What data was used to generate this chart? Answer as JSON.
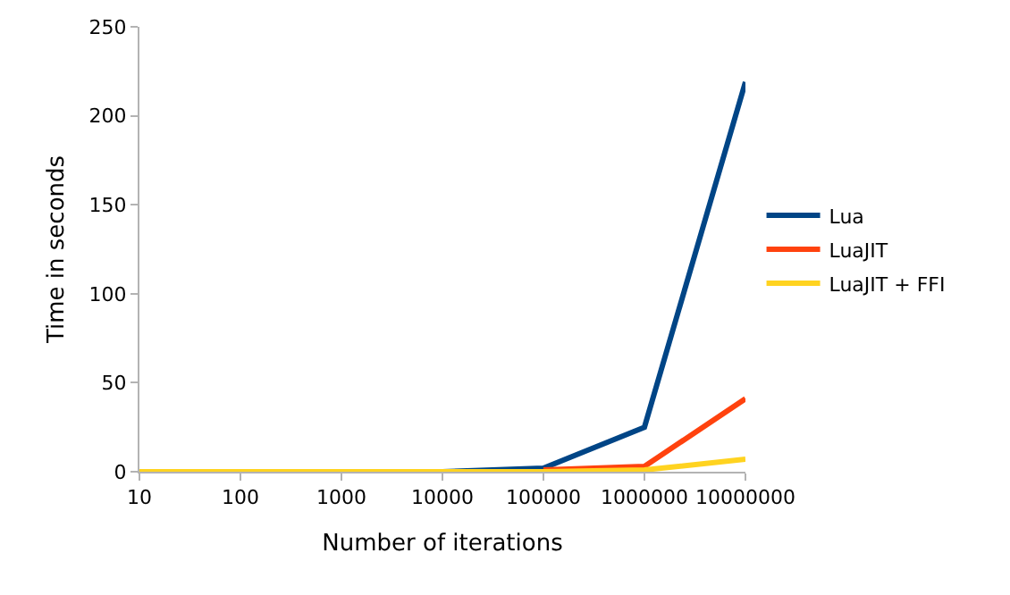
{
  "chart_data": {
    "type": "line",
    "xlabel": "Number of iterations",
    "ylabel": "Time in seconds",
    "categories": [
      "10",
      "100",
      "1000",
      "10000",
      "100000",
      "1000000",
      "10000000"
    ],
    "series": [
      {
        "name": "Lua",
        "color": "#004586",
        "values": [
          null,
          null,
          null,
          0,
          2,
          25,
          219
        ]
      },
      {
        "name": "LuaJIT",
        "color": "#ff420e",
        "values": [
          null,
          null,
          null,
          null,
          1,
          3,
          41
        ]
      },
      {
        "name": "LuaJIT + FFI",
        "color": "#ffd320",
        "values": [
          0,
          0,
          0,
          0,
          0,
          1,
          7
        ]
      }
    ],
    "ylim": [
      0,
      250
    ],
    "yticks": [
      0,
      50,
      100,
      150,
      200,
      250
    ],
    "grid": false,
    "legend": "right",
    "marker": "none",
    "line_style": "solid"
  }
}
